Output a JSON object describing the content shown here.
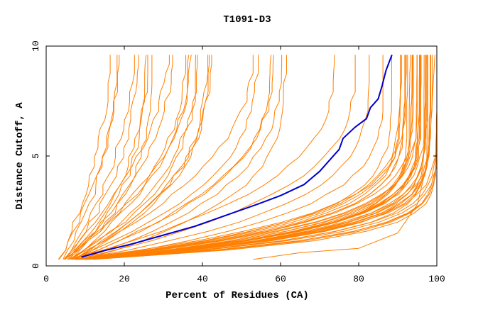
{
  "chart_data": {
    "type": "line",
    "title": "T1091-D3",
    "xlabel": "Percent of Residues (CA)",
    "ylabel": "Distance Cutoff, A",
    "xlim": [
      0,
      100
    ],
    "ylim": [
      0,
      10
    ],
    "xticks": [
      "0",
      "20",
      "40",
      "60",
      "80",
      "100"
    ],
    "yticks": [
      "0",
      "5",
      "10"
    ],
    "grid": false,
    "legend": "none",
    "colors": {
      "highlight": "#0000cc",
      "others": "#ff7f00",
      "axis": "#000000"
    },
    "highlight_series": {
      "x": [
        9,
        15,
        22,
        30,
        38,
        46,
        54,
        60,
        66,
        70,
        73,
        75,
        76,
        79,
        82,
        83,
        85,
        86,
        87,
        88.5
      ],
      "y": [
        0.4,
        0.7,
        1.0,
        1.4,
        1.8,
        2.3,
        2.8,
        3.2,
        3.7,
        4.3,
        4.9,
        5.3,
        5.8,
        6.3,
        6.7,
        7.2,
        7.6,
        8.2,
        8.9,
        9.6
      ]
    },
    "other_series_groups": [
      {
        "x0": 5,
        "y0": 0.3,
        "x1": 22,
        "y1": 9.6,
        "k": 2.2,
        "count": 8,
        "jitter": 0.7
      },
      {
        "x0": 6,
        "y0": 0.3,
        "x1": 38,
        "y1": 9.6,
        "k": 2.4,
        "count": 10,
        "jitter": 0.6
      },
      {
        "x0": 7,
        "y0": 0.3,
        "x1": 58,
        "y1": 9.6,
        "k": 2.8,
        "count": 6,
        "jitter": 0.55
      },
      {
        "x0": 8,
        "y0": 0.3,
        "x1": 80,
        "y1": 9.6,
        "k": 3.5,
        "count": 4,
        "jitter": 0.5
      },
      {
        "x0": 9,
        "y0": 0.3,
        "x1": 94,
        "y1": 9.6,
        "k": 6.5,
        "count": 22,
        "jitter": 0.35
      },
      {
        "x0": 10,
        "y0": 0.3,
        "x1": 99,
        "y1": 9.6,
        "k": 8.5,
        "count": 14,
        "jitter": 0.3
      }
    ],
    "bottom_series": {
      "x": [
        53,
        65,
        80,
        90,
        95,
        98,
        99.5
      ],
      "y": [
        0.3,
        0.6,
        0.8,
        1.5,
        2.8,
        5.0,
        9.6
      ]
    }
  }
}
